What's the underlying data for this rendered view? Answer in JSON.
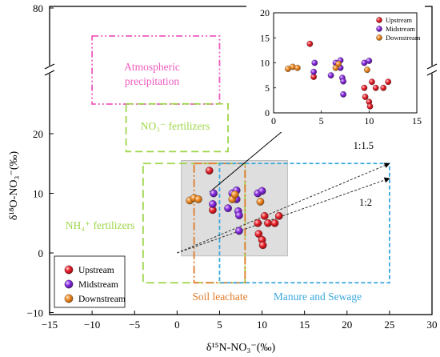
{
  "chart_data": {
    "type": "scatter",
    "xlabel": "δ¹⁵N-NO₃⁻(‰)",
    "ylabel": "δ¹⁸O-NO₃⁻(‰)",
    "xlim": [
      -15,
      30
    ],
    "ylim": [
      -10,
      80
    ],
    "y_axis_break": [
      25,
      75
    ],
    "x_ticks": [
      "−15",
      "−10",
      "−5",
      "0",
      "5",
      "10",
      "15",
      "20",
      "25",
      "30"
    ],
    "y_ticks": [
      "−10",
      "0",
      "10",
      "20",
      "80"
    ],
    "series": [
      {
        "name": "Upstream",
        "color": "#e8202a",
        "points": [
          [
            3.8,
            13.8
          ],
          [
            4.2,
            7.2
          ],
          [
            9.5,
            5.0
          ],
          [
            10.3,
            6.2
          ],
          [
            10.7,
            5.0
          ],
          [
            11.5,
            5.0
          ],
          [
            12.0,
            6.2
          ],
          [
            9.6,
            3.2
          ],
          [
            10.0,
            2.2
          ],
          [
            10.1,
            1.3
          ]
        ]
      },
      {
        "name": "Midstream",
        "color": "#8a2be2",
        "points": [
          [
            4.2,
            8.2
          ],
          [
            4.3,
            10.0
          ],
          [
            6.0,
            7.5
          ],
          [
            6.5,
            10.0
          ],
          [
            7.0,
            10.5
          ],
          [
            7.0,
            9.0
          ],
          [
            7.2,
            7.0
          ],
          [
            7.3,
            6.3
          ],
          [
            7.3,
            3.7
          ],
          [
            9.5,
            10.0
          ],
          [
            10.0,
            10.4
          ]
        ]
      },
      {
        "name": "Downstream",
        "color": "#f08a24",
        "points": [
          [
            1.5,
            8.8
          ],
          [
            2.0,
            9.2
          ],
          [
            2.5,
            9.0
          ],
          [
            6.5,
            9.0
          ],
          [
            6.8,
            9.8
          ],
          [
            9.8,
            8.6
          ]
        ]
      }
    ],
    "regions": [
      {
        "label": "Atmospheric precipitation",
        "color": "#ee5bbf",
        "x": [
          -10,
          5
        ],
        "y": [
          25,
          75
        ]
      },
      {
        "label": "NO₃⁻ fertilizers",
        "color": "#9ed64a",
        "x": [
          -6,
          6
        ],
        "y": [
          17,
          25
        ]
      },
      {
        "label": "NH₄⁺ fertilizers",
        "color": "#9ed64a",
        "x": [
          -4,
          8
        ],
        "y": [
          -5,
          15
        ]
      },
      {
        "label": "Soil leachate",
        "color": "#e07b2a",
        "x": [
          2,
          8
        ],
        "y": [
          -5,
          15
        ]
      },
      {
        "label": "Manure and Sewage",
        "color": "#3aa8e0",
        "x": [
          5,
          25
        ],
        "y": [
          -5,
          15
        ]
      }
    ],
    "highlight_box": {
      "x": [
        0.5,
        13
      ],
      "y": [
        -0.5,
        15.5
      ],
      "color": "#bdbdbd"
    },
    "ratio_lines": [
      {
        "label": "1:1.5",
        "from": [
          0,
          0
        ],
        "to": [
          25,
          15
        ]
      },
      {
        "label": "1:2",
        "from": [
          0,
          0
        ],
        "to": [
          25,
          12.5
        ]
      }
    ],
    "legend": {
      "position": "bottom-left",
      "entries": [
        "Upstream",
        "Midstream",
        "Downstream"
      ]
    },
    "inset": {
      "xlim": [
        0,
        15
      ],
      "ylim": [
        0,
        20
      ],
      "x_ticks": [
        "0",
        "5",
        "10",
        "15"
      ],
      "y_ticks": [
        "0",
        "5",
        "10",
        "15",
        "20"
      ],
      "legend_entries": [
        "Upstream",
        "Midstream",
        "Downstream"
      ]
    }
  }
}
